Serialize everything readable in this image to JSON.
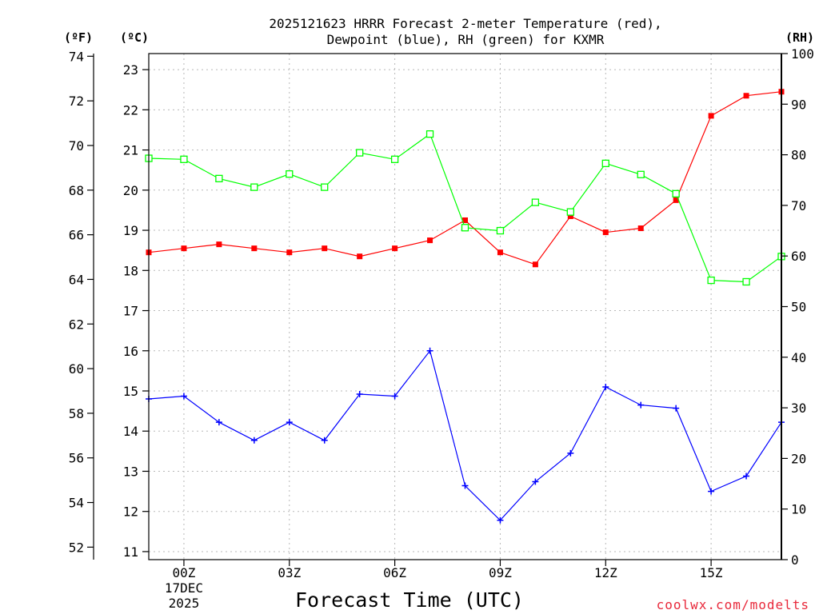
{
  "chart_data": {
    "type": "line",
    "title_lines": [
      "2025121623 HRRR Forecast 2-meter Temperature (red),",
      "Dewpoint (blue), RH (green) for KXMR"
    ],
    "xlabel": "Forecast Time (UTC)",
    "credit": "coolwx.com/modelts",
    "units": {
      "fahrenheit": "(ºF)",
      "celsius": "(ºC)",
      "rh": "(RH)"
    },
    "x_hours": [
      -1,
      0,
      1,
      2,
      3,
      4,
      5,
      6,
      7,
      8,
      9,
      10,
      11,
      12,
      13,
      14,
      15,
      16,
      17
    ],
    "xlim": [
      -1,
      17
    ],
    "x_ticks": [
      {
        "hour": 0,
        "label": "00Z",
        "sub1": "17DEC",
        "sub2": "2025"
      },
      {
        "hour": 3,
        "label": "03Z"
      },
      {
        "hour": 6,
        "label": "06Z"
      },
      {
        "hour": 9,
        "label": "09Z"
      },
      {
        "hour": 12,
        "label": "12Z"
      },
      {
        "hour": 15,
        "label": "15Z"
      }
    ],
    "celsius_axis": {
      "min": 10.8,
      "max": 23.4,
      "ticks": [
        "11",
        "12",
        "13",
        "14",
        "15",
        "16",
        "17",
        "18",
        "19",
        "20",
        "21",
        "22",
        "23"
      ]
    },
    "fahrenheit_axis": {
      "min": 51.44,
      "max": 74.12,
      "ticks": [
        "52",
        "54",
        "56",
        "58",
        "60",
        "62",
        "64",
        "66",
        "68",
        "70",
        "72",
        "74"
      ]
    },
    "rh_axis": {
      "min": 0,
      "max": 100,
      "ticks": [
        "0",
        "10",
        "20",
        "30",
        "40",
        "50",
        "60",
        "70",
        "80",
        "90",
        "100"
      ]
    },
    "grid": true,
    "series": [
      {
        "name": "2-meter Temperature",
        "axis": "celsius",
        "color": "#ff0000",
        "marker": "filled-square",
        "values": [
          18.45,
          18.55,
          18.65,
          18.55,
          18.45,
          18.55,
          18.35,
          18.55,
          18.75,
          19.25,
          18.45,
          18.15,
          19.35,
          18.95,
          19.05,
          19.75,
          21.85,
          22.35,
          22.45
        ]
      },
      {
        "name": "Dewpoint",
        "axis": "celsius",
        "color": "#0000ff",
        "marker": "plus",
        "values": [
          14.8,
          14.87,
          14.22,
          13.77,
          14.22,
          13.77,
          14.92,
          14.87,
          16.0,
          12.64,
          11.78,
          12.74,
          13.45,
          15.1,
          14.65,
          14.57,
          12.5,
          12.88,
          14.22
        ]
      },
      {
        "name": "Relative Humidity",
        "axis": "rh",
        "color": "#00ff00",
        "marker": "open-square",
        "values": [
          79.3,
          79.1,
          75.3,
          73.6,
          76.2,
          73.6,
          80.4,
          79.1,
          84.1,
          65.6,
          65.0,
          70.6,
          68.7,
          78.3,
          76.1,
          72.3,
          55.2,
          54.9,
          59.9
        ]
      }
    ]
  }
}
